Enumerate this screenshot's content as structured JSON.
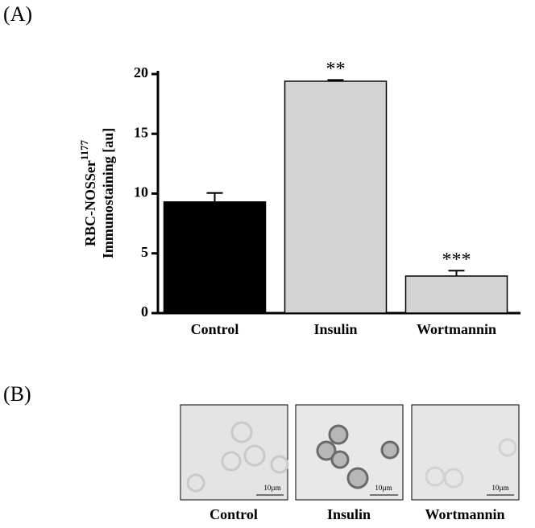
{
  "chart_data": {
    "type": "bar",
    "ylabel": {
      "main": "RBC-NOSSer",
      "superscript": "1177",
      "second_line": "Immunostaining [au]"
    },
    "categories": [
      "Control",
      "Insulin",
      "Wortmannin"
    ],
    "values": [
      9.3,
      19.4,
      3.1
    ],
    "errors": [
      0.75,
      0.1,
      0.45
    ],
    "colors": [
      "#000000",
      "#d3d3d3",
      "#d3d3d3"
    ],
    "annotations": [
      null,
      "**",
      "***"
    ],
    "ylim": [
      0,
      20
    ],
    "yticks": [
      0,
      5,
      10,
      15,
      20
    ],
    "grid": false
  },
  "panel_labels": [
    "(A)",
    "(B)"
  ],
  "micrographs": [
    {
      "label": "Control",
      "scale_bar": "10µm"
    },
    {
      "label": "Insulin",
      "scale_bar": "10µm"
    },
    {
      "label": "Wortmannin",
      "scale_bar": "10µm"
    }
  ]
}
